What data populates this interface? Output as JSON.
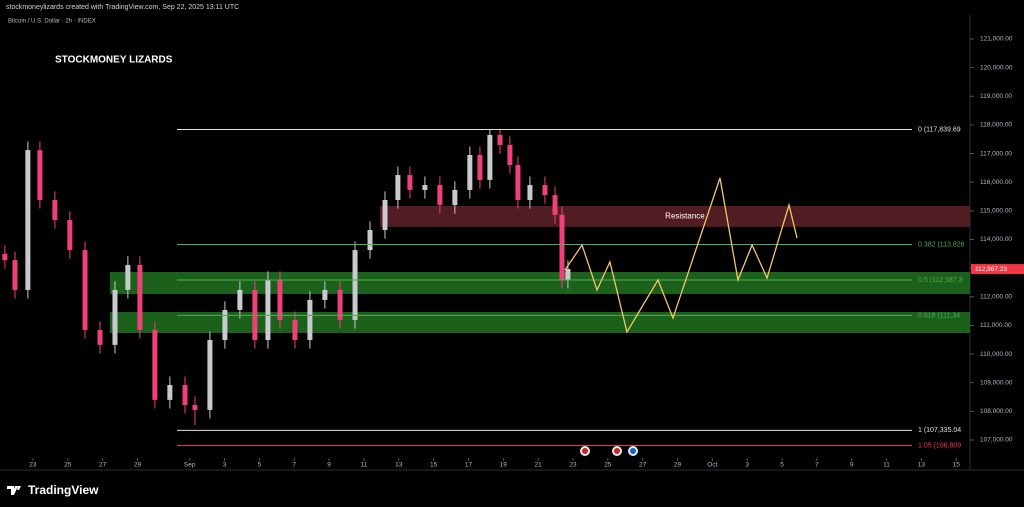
{
  "header": {
    "credit": "stockmoneylizards created with TradingView.com, Sep 22, 2025 13:11 UTC",
    "symbol": "Bitcoin / U.S. Dollar · 2h · INDEX",
    "watermark": "STOCKMONEY LIZARDS",
    "footer_brand": "TradingView"
  },
  "chart_data": {
    "type": "candlestick",
    "x": [
      -1.61,
      -1.03,
      -0.29,
      0.4,
      1.26,
      2.12,
      2.99,
      3.85,
      4.71,
      5.45,
      6.14,
      7.0,
      7.86,
      8.73,
      9.3,
      10.16,
      11.02,
      11.88,
      12.74,
      13.49,
      14.18,
      15.04,
      15.9,
      16.76,
      17.63,
      18.49,
      19.35,
      20.21,
      20.95,
      21.64,
      22.5,
      23.36,
      24.22,
      25.08,
      25.66,
      26.23,
      26.81,
      27.38,
      27.84,
      28.53,
      29.39,
      29.97,
      30.37,
      30.71
    ],
    "open": [
      113500,
      113280,
      112240,
      117120,
      115380,
      114680,
      113630,
      110840,
      110320,
      112240,
      113110,
      110840,
      108400,
      108920,
      108220,
      108050,
      110490,
      111540,
      112240,
      110490,
      112590,
      111190,
      110490,
      111890,
      112240,
      111190,
      113630,
      114330,
      115380,
      116250,
      115730,
      115900,
      115200,
      115730,
      116950,
      116080,
      117650,
      117300,
      116600,
      115380,
      115900,
      115550,
      114860,
      112590
    ],
    "high": [
      113800,
      113580,
      117420,
      117420,
      115680,
      114980,
      113930,
      111140,
      112540,
      113410,
      113410,
      111140,
      109220,
      109220,
      108520,
      110790,
      111840,
      112540,
      112540,
      112890,
      112890,
      111490,
      112190,
      112540,
      112540,
      113930,
      114630,
      115680,
      116550,
      116550,
      116200,
      116200,
      116030,
      117250,
      117250,
      117840,
      117840,
      117600,
      116900,
      116200,
      116200,
      115850,
      115160,
      113270
    ],
    "low": [
      112980,
      111940,
      111940,
      115080,
      114380,
      113330,
      110540,
      110020,
      110020,
      111940,
      110540,
      108100,
      108100,
      107920,
      107520,
      107750,
      110190,
      111240,
      110190,
      110190,
      110890,
      110190,
      110190,
      111590,
      110890,
      110890,
      113330,
      114030,
      115080,
      115430,
      115430,
      114900,
      114900,
      115430,
      115780,
      115780,
      117000,
      116300,
      115080,
      115080,
      115250,
      114560,
      112290,
      112290
    ],
    "close": [
      113280,
      112240,
      117120,
      115380,
      114680,
      113630,
      110840,
      110320,
      112240,
      113110,
      110840,
      108400,
      108920,
      108220,
      108050,
      110490,
      111540,
      112240,
      110490,
      112590,
      111190,
      110490,
      111890,
      112240,
      111190,
      113630,
      114330,
      115380,
      116250,
      115730,
      115900,
      115200,
      115730,
      116950,
      116080,
      117650,
      117300,
      116600,
      115380,
      115900,
      115550,
      114860,
      112590,
      112970
    ],
    "up_color": "#c8cad0",
    "down_color": "#f0407a",
    "xlim": [
      -1.89,
      53.79
    ],
    "xticks": [
      {
        "value": 0,
        "label": "23"
      },
      {
        "value": 2,
        "label": "25"
      },
      {
        "value": 4,
        "label": "27"
      },
      {
        "value": 6,
        "label": "29"
      },
      {
        "value": 9,
        "label": "Sep"
      },
      {
        "value": 11,
        "label": "3"
      },
      {
        "value": 13,
        "label": "5"
      },
      {
        "value": 15,
        "label": "7"
      },
      {
        "value": 17,
        "label": "9"
      },
      {
        "value": 19,
        "label": "11"
      },
      {
        "value": 21,
        "label": "13"
      },
      {
        "value": 23,
        "label": "15"
      },
      {
        "value": 25,
        "label": "17"
      },
      {
        "value": 27,
        "label": "19"
      },
      {
        "value": 29,
        "label": "21"
      },
      {
        "value": 31,
        "label": "23"
      },
      {
        "value": 33,
        "label": "25"
      },
      {
        "value": 35,
        "label": "27"
      },
      {
        "value": 37,
        "label": "29"
      },
      {
        "value": 39,
        "label": "Oct"
      },
      {
        "value": 41,
        "label": "3"
      },
      {
        "value": 43,
        "label": "5"
      },
      {
        "value": 45,
        "label": "7"
      },
      {
        "value": 47,
        "label": "9"
      },
      {
        "value": 49,
        "label": "11"
      },
      {
        "value": 51,
        "label": "13"
      },
      {
        "value": 53,
        "label": "15"
      }
    ],
    "ylim": [
      106371,
      121838
    ],
    "yticks": [
      {
        "value": 107000,
        "label": "107,000.00"
      },
      {
        "value": 108000,
        "label": "108,000.00"
      },
      {
        "value": 109000,
        "label": "109,000.00"
      },
      {
        "value": 110000,
        "label": "110,000.00"
      },
      {
        "value": 111000,
        "label": "111,000.00"
      },
      {
        "value": 112000,
        "label": "112,000.00"
      },
      {
        "value": 113000,
        "label": "113,000.00"
      },
      {
        "value": 114000,
        "label": "114,000.00"
      },
      {
        "value": 115000,
        "label": "115,000.00"
      },
      {
        "value": 116000,
        "label": "116,000.00"
      },
      {
        "value": 117000,
        "label": "117,000.00"
      },
      {
        "value": 118000,
        "label": "118,000.00"
      },
      {
        "value": 119000,
        "label": "119,000.00"
      },
      {
        "value": 120000,
        "label": "120,000.00"
      },
      {
        "value": 121000,
        "label": "121,000.00"
      }
    ],
    "zones": [
      {
        "label": "Resistance",
        "ymin": 114440,
        "ymax": 115170,
        "xstart": 19.92,
        "color": "#5a1f26"
      },
      {
        "ymin": 112097,
        "ymax": 112865,
        "xstart": 4.42,
        "color": "#1e6b1e"
      },
      {
        "ymin": 110735,
        "ymax": 111468,
        "xstart": 4.42,
        "color": "#1e6b1e"
      }
    ],
    "levels_xstart": 8.27,
    "levels": [
      {
        "label": "0 (117,839.69",
        "value": 117839.69,
        "color": "#e0e0e0"
      },
      {
        "label": "0.382 (113,826",
        "value": 113826,
        "color": "#4caf50"
      },
      {
        "label": "0.5 (112,587.3",
        "value": 112587.3,
        "color": "#4caf50"
      },
      {
        "label": "0.618 (111,34",
        "value": 111349,
        "color": "#4caf50"
      },
      {
        "label": "1 (107,335.04",
        "value": 107335.04,
        "color": "#e0e0e0"
      },
      {
        "label": "1.05 (106,809",
        "value": 106809,
        "color": "#f23645"
      }
    ],
    "projection": {
      "color": "#f5c56b",
      "x": [
        30.54,
        31.52,
        32.38,
        33.12,
        34.1,
        35.88,
        36.74,
        39.44,
        40.47,
        41.28,
        42.14,
        43.4,
        43.86
      ],
      "y": [
        112934,
        113807,
        112236,
        113214,
        110770,
        112585,
        111258,
        116147,
        112585,
        113807,
        112655,
        115204,
        114052
      ]
    },
    "last_price": {
      "value": 112967.23,
      "label": "112,967.23",
      "color": "#f23645"
    }
  }
}
